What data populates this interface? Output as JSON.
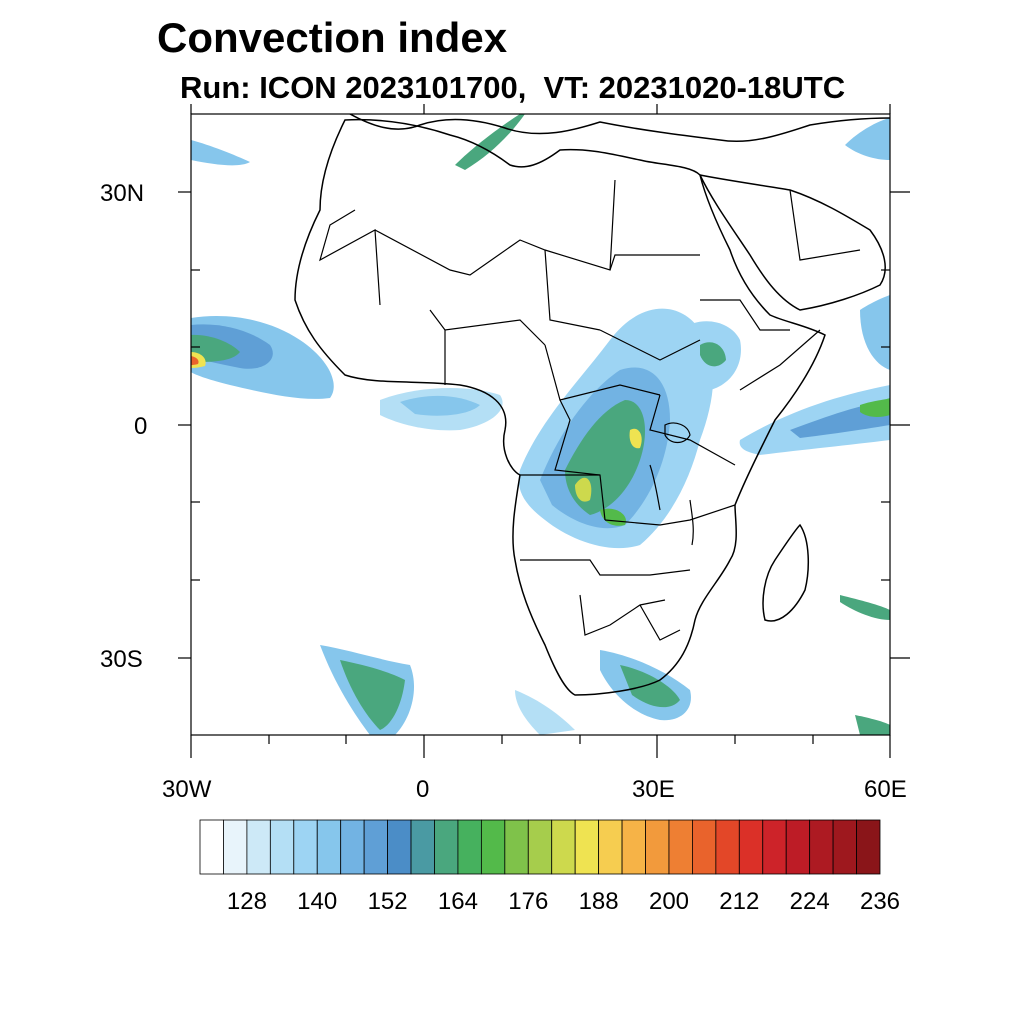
{
  "title": "Convection index",
  "subtitle": "Run: ICON 2023101700,  VT: 20231020-18UTC",
  "axes": {
    "lat_labels": [
      "30N",
      "0",
      "30S"
    ],
    "lon_labels": [
      "30W",
      "0",
      "30E",
      "60E"
    ]
  },
  "colorbar": {
    "labels": [
      "128",
      "140",
      "152",
      "164",
      "176",
      "188",
      "200",
      "212",
      "224",
      "236"
    ],
    "colors": [
      "#ffffff",
      "#e8f4fb",
      "#cde9f7",
      "#b4dff5",
      "#9dd4f3",
      "#86c6ec",
      "#72b3e3",
      "#5f9fd6",
      "#4b8dc7",
      "#4a9aa3",
      "#4aa77e",
      "#46b15e",
      "#53ba4a",
      "#7fc24a",
      "#a6cd4c",
      "#cdd94d",
      "#efe351",
      "#f6cd50",
      "#f6b347",
      "#f29a3c",
      "#ee7f33",
      "#e9632c",
      "#e34728",
      "#db3028",
      "#cd2329",
      "#bd1c26",
      "#ad1a22",
      "#9e181e",
      "#8a1519"
    ]
  },
  "legend": {
    "domain": "Africa and adjacent oceans, 40S to 40N, 30W to 60E",
    "variable": "Convection index"
  }
}
